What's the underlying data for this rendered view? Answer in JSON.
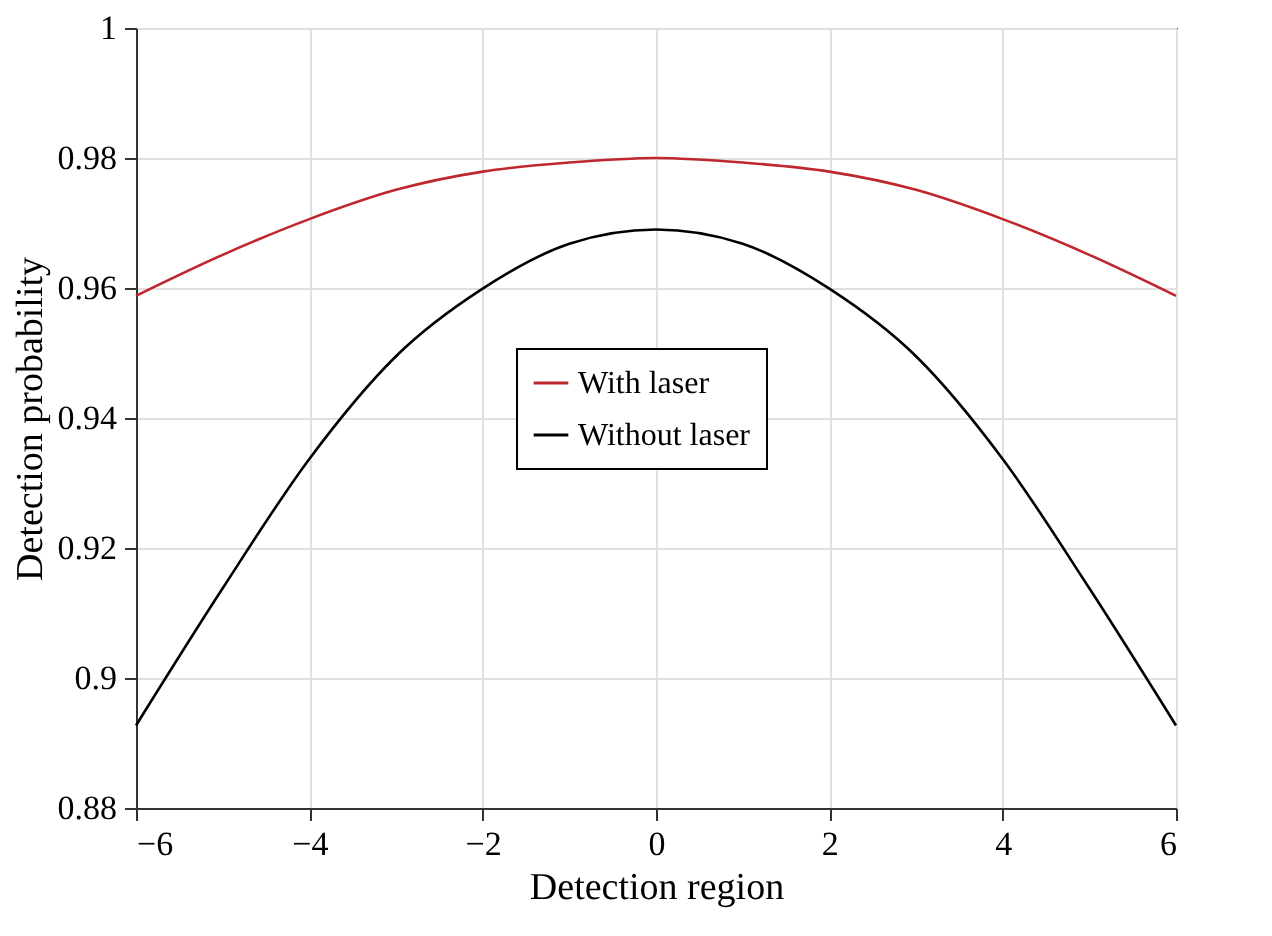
{
  "chart_data": {
    "type": "line",
    "xlabel": "Detection region",
    "ylabel": "Detection probability",
    "x": [
      -6,
      -5,
      -4,
      -3,
      -2,
      -1,
      0,
      1,
      2,
      3,
      4,
      5,
      6
    ],
    "series": [
      {
        "name": "With laser",
        "color": "#c0272d",
        "values": [
          0.9588,
          0.9651,
          0.9706,
          0.9751,
          0.9779,
          0.9793,
          0.98,
          0.9793,
          0.9779,
          0.9751,
          0.9706,
          0.9651,
          0.9588
        ]
      },
      {
        "name": "Without laser",
        "color": "#000000",
        "values": [
          0.8927,
          0.9138,
          0.9337,
          0.9495,
          0.9599,
          0.9668,
          0.969,
          0.9668,
          0.9599,
          0.9495,
          0.9337,
          0.9138,
          0.8927
        ]
      }
    ],
    "xlim": [
      -6,
      6
    ],
    "xticks": [
      -6,
      -4,
      -2,
      0,
      2,
      4,
      6
    ],
    "ylim": [
      0.88,
      1
    ],
    "yticks": [
      0.88,
      0.9,
      0.92,
      0.94,
      0.96,
      0.98,
      1
    ],
    "grid": true,
    "legend": "center",
    "marker": "none",
    "line_style": "solid"
  }
}
